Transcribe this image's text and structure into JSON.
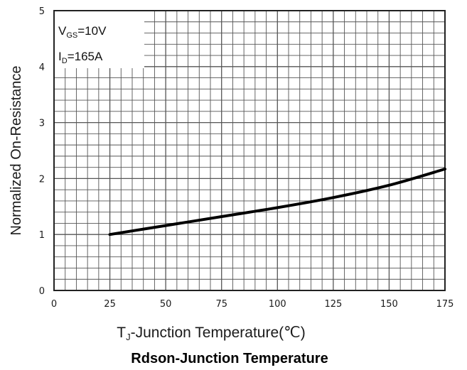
{
  "chart_data": {
    "type": "line",
    "title": "Rdson-Junction Temperature",
    "xlabel": "-Junction Temperature(℃)",
    "xlabel_prefix": "T",
    "xlabel_prefix_sub": "J",
    "ylabel": "Normalized On-Resistance",
    "xlim": [
      0,
      175
    ],
    "ylim": [
      0,
      5
    ],
    "xticks": [
      0,
      25,
      50,
      75,
      100,
      125,
      150,
      175
    ],
    "xtick_labels": [
      "0",
      "25",
      "50",
      "75",
      "100",
      "125",
      "150",
      "175"
    ],
    "yticks": [
      0,
      1,
      2,
      3,
      4,
      5
    ],
    "ytick_labels": [
      "0",
      "1",
      "2",
      "3",
      "4",
      "5"
    ],
    "grid": true,
    "annotations": [
      {
        "main": "V",
        "sub": "GS",
        "rest": "=10V"
      },
      {
        "main": "I",
        "sub": "D",
        "rest": "=165A"
      }
    ],
    "series": [
      {
        "x": [
          25,
          50,
          75,
          100,
          125,
          150,
          175
        ],
        "y": [
          1.0,
          1.16,
          1.32,
          1.48,
          1.66,
          1.88,
          2.17
        ]
      }
    ]
  },
  "colors": {
    "grid": "#555555",
    "axis": "#222222",
    "curve": "#000000"
  }
}
